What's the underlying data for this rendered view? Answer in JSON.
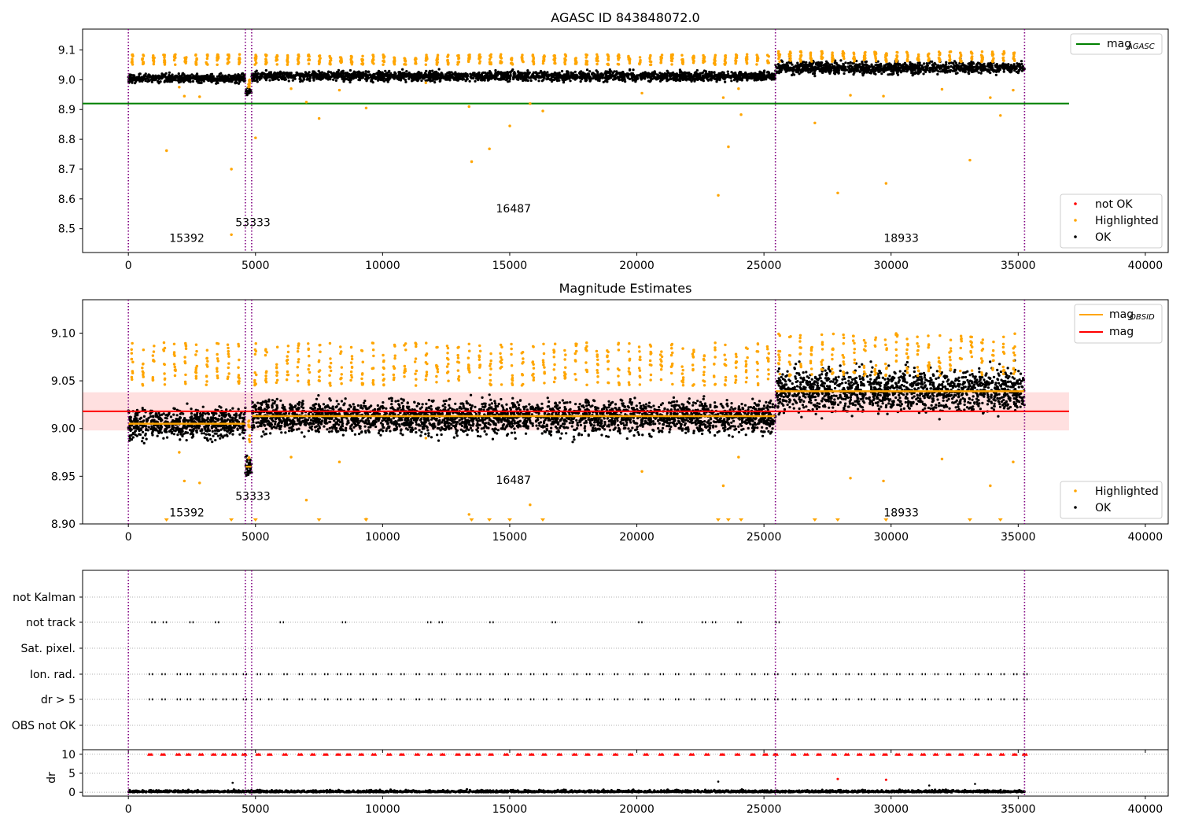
{
  "chart_data": [
    {
      "type": "scatter",
      "title": "AGASC ID 843848072.0",
      "xlim": [
        -1800,
        40900
      ],
      "ylim": [
        8.42,
        9.17
      ],
      "xticks": [
        0,
        5000,
        10000,
        15000,
        20000,
        25000,
        30000,
        35000,
        40000
      ],
      "yticks": [
        8.5,
        8.6,
        8.7,
        8.8,
        8.9,
        9.0,
        9.1
      ],
      "grid": false,
      "legend_upper": {
        "position": "top-right",
        "entries": [
          {
            "label": "mag",
            "sub": "AGASC",
            "color": "#008000",
            "kind": "line"
          }
        ]
      },
      "legend_lower": {
        "position": "bottom-right",
        "entries": [
          {
            "label": "not OK",
            "color": "#ff0000",
            "kind": "dot"
          },
          {
            "label": "Highlighted",
            "color": "#ffa500",
            "kind": "dot"
          },
          {
            "label": "OK",
            "color": "#000000",
            "kind": "dot"
          }
        ]
      },
      "hlines": [
        {
          "y": 8.92,
          "color": "#008000",
          "x0": -1800,
          "x1": 37000
        }
      ],
      "vlines": [
        0,
        4600,
        4850,
        25450,
        35250
      ],
      "segments": [
        {
          "x0": 0,
          "x1": 4600,
          "ok_center": 9.005,
          "ok_spread": 0.02,
          "hi_center": 9.065,
          "obsid_mag": 9.005
        },
        {
          "x0": 4600,
          "x1": 4850,
          "ok_center": 8.96,
          "ok_spread": 0.015,
          "hi_center": 8.985,
          "obsid_mag": 8.96
        },
        {
          "x0": 4850,
          "x1": 25450,
          "ok_center": 9.012,
          "ok_spread": 0.022,
          "hi_center": 9.065,
          "obsid_mag": 9.013
        },
        {
          "x0": 25450,
          "x1": 35250,
          "ok_center": 9.04,
          "ok_spread": 0.028,
          "hi_center": 9.075,
          "obsid_mag": 9.039
        }
      ],
      "outliers": [
        [
          1500,
          8.762
        ],
        [
          4050,
          8.7
        ],
        [
          4050,
          8.48
        ],
        [
          5000,
          8.805
        ],
        [
          7000,
          8.925
        ],
        [
          7500,
          8.87
        ],
        [
          9350,
          8.905
        ],
        [
          11700,
          8.99
        ],
        [
          13400,
          8.91
        ],
        [
          13500,
          8.725
        ],
        [
          14200,
          8.768
        ],
        [
          15000,
          8.845
        ],
        [
          15800,
          8.92
        ],
        [
          16300,
          8.895
        ],
        [
          20200,
          8.955
        ],
        [
          23200,
          8.612
        ],
        [
          23400,
          8.94
        ],
        [
          23600,
          8.775
        ],
        [
          24100,
          8.883
        ],
        [
          24000,
          8.97
        ],
        [
          27000,
          8.855
        ],
        [
          27900,
          8.62
        ],
        [
          28400,
          8.948
        ],
        [
          29700,
          8.945
        ],
        [
          29800,
          8.652
        ],
        [
          32000,
          8.968
        ],
        [
          33100,
          8.73
        ],
        [
          34300,
          8.88
        ],
        [
          33900,
          8.94
        ],
        [
          34800,
          8.965
        ],
        [
          2000,
          8.975
        ],
        [
          2200,
          8.945
        ],
        [
          2800,
          8.943
        ],
        [
          6400,
          8.97
        ],
        [
          8300,
          8.965
        ]
      ],
      "annotations": [
        {
          "text": "15392",
          "x": 2300,
          "y": 8.455
        },
        {
          "text": "53333",
          "x": 4900,
          "y": 8.508
        },
        {
          "text": "16487",
          "x": 15150,
          "y": 8.555
        },
        {
          "text": "18933",
          "x": 30400,
          "y": 8.455
        }
      ]
    },
    {
      "type": "scatter",
      "title": "Magnitude Estimates",
      "xlim": [
        -1800,
        40900
      ],
      "ylim": [
        8.9,
        9.135
      ],
      "xticks": [
        0,
        5000,
        10000,
        15000,
        20000,
        25000,
        30000,
        35000,
        40000
      ],
      "yticks": [
        8.9,
        8.95,
        9.0,
        9.05,
        9.1
      ],
      "ytick_format": 2,
      "grid": false,
      "legend_upper": {
        "position": "top-right",
        "entries": [
          {
            "label": "mag",
            "sub": "OBSID",
            "color": "#ffa500",
            "kind": "line"
          },
          {
            "label": "mag",
            "color": "#ff0000",
            "kind": "line"
          }
        ]
      },
      "legend_lower": {
        "position": "bottom-right",
        "entries": [
          {
            "label": "Highlighted",
            "color": "#ffa500",
            "kind": "dot"
          },
          {
            "label": "OK",
            "color": "#000000",
            "kind": "dot"
          }
        ]
      },
      "mag_line": {
        "y": 9.018,
        "band": [
          8.998,
          9.038
        ],
        "color": "#ff0000",
        "x1": 37000
      },
      "vlines": [
        0,
        4600,
        4850,
        25450,
        35250
      ],
      "below_markers": [
        1500,
        4050,
        5000,
        7500,
        9350,
        13500,
        14200,
        15000,
        16300,
        23200,
        23600,
        24100,
        27000,
        27900,
        29800,
        33100,
        34300
      ],
      "annotations": [
        {
          "text": "15392",
          "x": 2300,
          "y": 8.908
        },
        {
          "text": "53333",
          "x": 4900,
          "y": 8.925
        },
        {
          "text": "16487",
          "x": 15150,
          "y": 8.942
        },
        {
          "text": "18933",
          "x": 30400,
          "y": 8.908
        }
      ]
    },
    {
      "type": "scatter",
      "title": "",
      "xlim": [
        -1800,
        40900
      ],
      "xticks": [
        0,
        5000,
        10000,
        15000,
        20000,
        25000,
        30000,
        35000,
        40000
      ],
      "flag_rows": [
        "not Kalman",
        "not track",
        "Sat. pixel.",
        "Ion. rad.",
        "dr > 5",
        "OBS not OK"
      ],
      "flag_points": {
        "not track": [
          900,
          1350,
          2400,
          3400,
          5950,
          8400,
          11750,
          12200,
          14200,
          16650,
          20050,
          22550,
          22950,
          23950,
          25450
        ],
        "Ion. rad.": [
          800,
          1300,
          1900,
          2300,
          2800,
          3300,
          3700,
          4100,
          4500,
          5050,
          5500,
          6100,
          6700,
          7200,
          7700,
          8200,
          8600,
          9100,
          9600,
          10200,
          10700,
          11300,
          11800,
          12300,
          12900,
          13300,
          13700,
          14200,
          14800,
          15300,
          15800,
          16300,
          16900,
          17500,
          18000,
          18500,
          19100,
          19700,
          20300,
          20900,
          21500,
          22100,
          22700,
          23300,
          23900,
          24500,
          25000,
          25400,
          26100,
          26600,
          27100,
          27700,
          28200,
          28700,
          29200,
          29700,
          30200,
          30700,
          31200,
          31700,
          32200,
          32700,
          33300,
          33800,
          34300,
          34800,
          35200
        ],
        "dr > 5": [
          800,
          1300,
          1900,
          2300,
          2800,
          3300,
          3700,
          4100,
          4500,
          5050,
          5500,
          6100,
          6700,
          7200,
          7700,
          8200,
          8600,
          9100,
          9600,
          10200,
          10700,
          11300,
          11800,
          12300,
          12900,
          13300,
          13700,
          14200,
          14800,
          15300,
          15800,
          16300,
          16900,
          17500,
          18000,
          18500,
          19100,
          19700,
          20300,
          20900,
          21500,
          22100,
          22700,
          23300,
          23900,
          24500,
          25000,
          25400,
          26100,
          26600,
          27100,
          27700,
          28200,
          28700,
          29200,
          29700,
          30200,
          30700,
          31200,
          31700,
          32200,
          32700,
          33300,
          33800,
          34300,
          34800,
          35200
        ]
      },
      "vlines": [
        0,
        4600,
        4850,
        25450,
        35250
      ]
    },
    {
      "type": "scatter",
      "title": "",
      "ylabel": "dr",
      "xlim": [
        -1800,
        40900
      ],
      "ylim": [
        -1,
        11.2
      ],
      "yticks": [
        0,
        5,
        10
      ],
      "xticks": [
        0,
        5000,
        10000,
        15000,
        20000,
        25000,
        30000,
        35000,
        40000
      ],
      "capped_value": 10,
      "outliers": [
        [
          4100,
          2.5
        ],
        [
          23200,
          2.8
        ],
        [
          27900,
          3.5
        ],
        [
          29800,
          3.3
        ],
        [
          31500,
          1.8
        ],
        [
          33300,
          2.2
        ]
      ],
      "vlines": [
        0,
        4600,
        4850,
        25450,
        35250
      ]
    }
  ]
}
